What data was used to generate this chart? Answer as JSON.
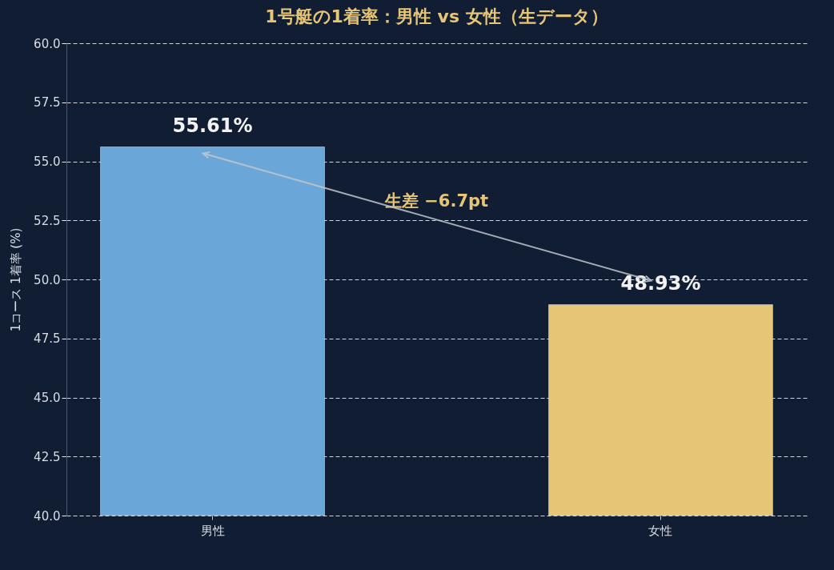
{
  "chart_data": {
    "type": "bar",
    "title": "1号艇の1着率：男性 vs 女性（生データ）",
    "ylabel": "1コース 1着率 (%)",
    "categories": [
      "男性",
      "女性"
    ],
    "values": [
      55.61,
      48.93
    ],
    "colors": [
      "#6aa7d8",
      "#e6c676"
    ],
    "value_labels": [
      "55.61%",
      "48.93%"
    ],
    "annotations": [
      "生差 −6.7pt"
    ],
    "ylim": [
      40,
      60
    ],
    "yticks": [
      {
        "value": 40,
        "label": "40.0"
      },
      {
        "value": 42.5,
        "label": "42.5"
      },
      {
        "value": 45,
        "label": "45.0"
      },
      {
        "value": 47.5,
        "label": "47.5"
      },
      {
        "value": 50,
        "label": "50.0"
      },
      {
        "value": 52.5,
        "label": "52.5"
      },
      {
        "value": 55,
        "label": "55.0"
      },
      {
        "value": 57.5,
        "label": "57.5"
      },
      {
        "value": 60,
        "label": "60.0"
      }
    ],
    "grid": "y"
  }
}
